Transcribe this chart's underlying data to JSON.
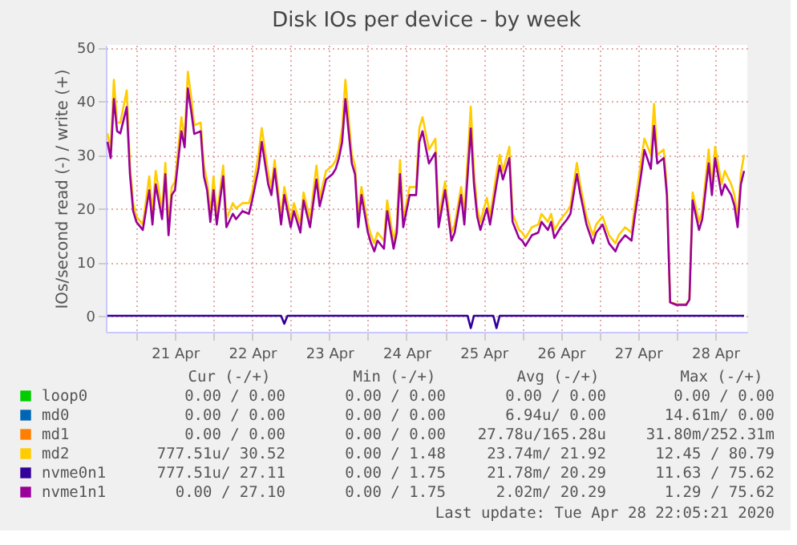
{
  "chart_data": {
    "type": "line",
    "title": "Disk IOs per device - by week",
    "ylabel": "IOs/second read (-) / write (+)",
    "x": [
      "2020-04-20T15:00",
      "2020-04-20T16:00",
      "2020-04-20T17:00",
      "2020-04-20T18:00",
      "2020-04-20T19:00",
      "2020-04-20T21:00",
      "2020-04-20T22:00",
      "2020-04-20T23:00",
      "2020-04-21T00:00",
      "2020-04-21T02:00",
      "2020-04-21T04:00",
      "2020-04-21T05:00",
      "2020-04-21T06:00",
      "2020-04-21T08:00",
      "2020-04-21T09:00",
      "2020-04-21T10:00",
      "2020-04-21T11:00",
      "2020-04-21T12:00",
      "2020-04-21T14:00",
      "2020-04-21T15:00",
      "2020-04-21T16:00",
      "2020-04-21T17:00",
      "2020-04-21T18:00",
      "2020-04-21T20:00",
      "2020-04-21T21:00",
      "2020-04-21T22:00",
      "2020-04-21T23:00",
      "2020-04-22T00:00",
      "2020-04-22T01:00",
      "2020-04-22T03:00",
      "2020-04-22T04:00",
      "2020-04-22T06:00",
      "2020-04-22T07:00",
      "2020-04-22T09:00",
      "2020-04-22T11:00",
      "2020-04-22T12:00",
      "2020-04-22T14:00",
      "2020-04-22T15:00",
      "2020-04-22T17:00",
      "2020-04-22T18:00",
      "2020-04-22T19:00",
      "2020-04-22T21:00",
      "2020-04-22T22:00",
      "2020-04-23T00:00",
      "2020-04-23T01:00",
      "2020-04-23T03:00",
      "2020-04-23T04:00",
      "2020-04-23T06:00",
      "2020-04-23T08:00",
      "2020-04-23T09:00",
      "2020-04-23T11:00",
      "2020-04-23T13:00",
      "2020-04-23T14:00",
      "2020-04-23T15:00",
      "2020-04-23T16:00",
      "2020-04-23T17:00",
      "2020-04-23T19:00",
      "2020-04-23T20:00",
      "2020-04-23T21:00",
      "2020-04-23T22:00",
      "2020-04-24T00:00",
      "2020-04-24T01:00",
      "2020-04-24T02:00",
      "2020-04-24T03:00",
      "2020-04-24T05:00",
      "2020-04-24T06:00",
      "2020-04-24T08:00",
      "2020-04-24T09:00",
      "2020-04-24T10:00",
      "2020-04-24T11:00",
      "2020-04-24T13:00",
      "2020-04-24T15:00",
      "2020-04-24T16:00",
      "2020-04-24T17:00",
      "2020-04-24T19:00",
      "2020-04-24T21:00",
      "2020-04-24T22:00",
      "2020-04-25T00:00",
      "2020-04-25T02:00",
      "2020-04-25T03:00",
      "2020-04-25T05:00",
      "2020-04-25T06:00",
      "2020-04-25T08:00",
      "2020-04-25T09:00",
      "2020-04-25T10:00",
      "2020-04-25T11:00",
      "2020-04-25T13:00",
      "2020-04-25T14:00",
      "2020-04-25T16:00",
      "2020-04-25T17:00",
      "2020-04-25T18:00",
      "2020-04-25T20:00",
      "2020-04-25T21:00",
      "2020-04-25T23:00",
      "2020-04-26T00:00",
      "2020-04-26T01:00",
      "2020-04-26T03:00",
      "2020-04-26T05:00",
      "2020-04-26T06:00",
      "2020-04-26T08:00",
      "2020-04-26T09:00",
      "2020-04-26T10:00",
      "2020-04-26T12:00",
      "2020-04-26T14:00",
      "2020-04-26T15:00",
      "2020-04-26T17:00",
      "2020-04-26T18:00",
      "2020-04-26T20:00",
      "2020-04-26T22:00",
      "2020-04-26T23:00",
      "2020-04-27T01:00",
      "2020-04-27T03:00",
      "2020-04-27T05:00",
      "2020-04-27T06:00",
      "2020-04-27T08:00",
      "2020-04-27T10:00",
      "2020-04-27T11:00",
      "2020-04-27T13:00",
      "2020-04-27T14:00",
      "2020-04-27T16:00",
      "2020-04-27T17:00",
      "2020-04-27T18:00",
      "2020-04-27T20:00",
      "2020-04-27T21:00",
      "2020-04-27T22:00",
      "2020-04-28T00:00",
      "2020-04-28T03:00",
      "2020-04-28T04:00",
      "2020-04-28T05:00",
      "2020-04-28T07:00",
      "2020-04-28T08:00",
      "2020-04-28T10:00",
      "2020-04-28T11:00",
      "2020-04-28T12:00",
      "2020-04-28T14:00",
      "2020-04-28T15:00",
      "2020-04-28T17:00",
      "2020-04-28T18:00",
      "2020-04-28T19:00",
      "2020-04-28T20:00",
      "2020-04-28T21:00"
    ],
    "series": [
      {
        "name": "loop0",
        "color": "#00cc00",
        "values": [
          null,
          null,
          null,
          null,
          null,
          null,
          null,
          null,
          null,
          null,
          null,
          null,
          null,
          null,
          null,
          null,
          null,
          null,
          null,
          null,
          null,
          null,
          null,
          null,
          null,
          null,
          null,
          null,
          null,
          null,
          null,
          null,
          null,
          null,
          null,
          null,
          null,
          null,
          null,
          null,
          null,
          null,
          null,
          null,
          null,
          null,
          null,
          null,
          null,
          null,
          null,
          null,
          null,
          null,
          null,
          null,
          null,
          null,
          null,
          null,
          null,
          null,
          null,
          null,
          null,
          null,
          null,
          null,
          null,
          null,
          null,
          null,
          null,
          null,
          null,
          null,
          null,
          null,
          null,
          null,
          null,
          null,
          null,
          null,
          null,
          null,
          null,
          null,
          null,
          null,
          null,
          null,
          null,
          null,
          null,
          null,
          null,
          null,
          null,
          null,
          null,
          null,
          null,
          null,
          null,
          null,
          null,
          null,
          null,
          null,
          null,
          null,
          null,
          null,
          null,
          null,
          null,
          null,
          null,
          null,
          null,
          null,
          null,
          null,
          null,
          null,
          null,
          null,
          null,
          null,
          null,
          null,
          null,
          null,
          null,
          null,
          null,
          null,
          null,
          null,
          null
        ]
      },
      {
        "name": "md0",
        "color": "#0066b3",
        "values": [
          null,
          null,
          null,
          null,
          null,
          null,
          null,
          null,
          null,
          null,
          null,
          null,
          null,
          null,
          null,
          null,
          null,
          null,
          null,
          null,
          null,
          null,
          null,
          null,
          null,
          null,
          null,
          null,
          null,
          null,
          null,
          null,
          null,
          null,
          null,
          null,
          null,
          null,
          null,
          null,
          null,
          null,
          null,
          null,
          null,
          null,
          null,
          null,
          null,
          null,
          null,
          null,
          null,
          null,
          null,
          null,
          null,
          null,
          null,
          null,
          null,
          null,
          null,
          null,
          null,
          null,
          null,
          null,
          null,
          null,
          null,
          null,
          null,
          null,
          null,
          null,
          null,
          null,
          null,
          null,
          null,
          null,
          null,
          null,
          null,
          null,
          null,
          null,
          null,
          null,
          null,
          null,
          null,
          null,
          null,
          null,
          null,
          null,
          null,
          null,
          null,
          null,
          null,
          null,
          null,
          null,
          null,
          null,
          null,
          null,
          null,
          null,
          null,
          null,
          null,
          null,
          null,
          null,
          null,
          null,
          null,
          null,
          null,
          null,
          null,
          null,
          null,
          null,
          null,
          null,
          null,
          null,
          null,
          null,
          null,
          null,
          null,
          null,
          null,
          null,
          null
        ]
      },
      {
        "name": "md1",
        "color": "#ff8000",
        "values": [
          null,
          null,
          null,
          null,
          null,
          null,
          null,
          null,
          null,
          null,
          null,
          null,
          null,
          null,
          null,
          null,
          null,
          null,
          null,
          null,
          null,
          null,
          null,
          null,
          null,
          null,
          null,
          null,
          null,
          null,
          null,
          null,
          null,
          null,
          null,
          null,
          null,
          null,
          null,
          null,
          null,
          null,
          null,
          null,
          null,
          null,
          null,
          null,
          null,
          null,
          null,
          null,
          null,
          null,
          null,
          null,
          null,
          null,
          null,
          null,
          null,
          null,
          null,
          null,
          null,
          null,
          null,
          null,
          null,
          null,
          null,
          null,
          null,
          null,
          null,
          null,
          null,
          null,
          null,
          null,
          null,
          null,
          null,
          null,
          null,
          null,
          null,
          null,
          null,
          null,
          null,
          null,
          null,
          null,
          null,
          null,
          null,
          null,
          null,
          null,
          null,
          null,
          null,
          null,
          null,
          null,
          null,
          null,
          null,
          null,
          null,
          null,
          null,
          null,
          null,
          null,
          null,
          null,
          null,
          null,
          null,
          null,
          null,
          null,
          null,
          null,
          null,
          null,
          null,
          null,
          null,
          null,
          null,
          null,
          null,
          null,
          null,
          null,
          null,
          null,
          null
        ]
      },
      {
        "name": "md2",
        "color": "#ffcc00",
        "values": [
          34,
          31,
          44,
          36,
          36,
          42,
          28,
          21,
          18.5,
          17,
          26,
          19,
          27,
          19.5,
          28.5,
          17,
          24,
          25,
          37,
          33,
          45.5,
          41,
          35.5,
          36,
          28,
          25,
          19,
          26,
          18.5,
          28,
          18,
          21,
          20,
          21,
          21,
          23,
          30,
          35,
          26.5,
          24,
          29,
          18.5,
          24,
          18,
          21,
          17,
          23,
          18,
          28,
          22,
          27,
          28,
          29,
          31,
          35,
          44,
          30,
          28,
          18.5,
          24,
          17,
          15,
          13.5,
          15.5,
          14,
          21.5,
          14,
          17,
          29,
          18,
          24,
          24,
          35,
          37,
          31,
          33,
          18,
          25,
          15.5,
          17,
          24,
          19,
          39,
          27,
          20,
          17.5,
          22,
          18.5,
          26.5,
          30,
          27,
          31.5,
          19,
          16,
          15.5,
          14.5,
          16.5,
          17,
          19,
          17.5,
          19,
          16,
          18,
          19.5,
          20.5,
          28.5,
          24.5,
          18.5,
          15,
          17,
          18.5,
          15,
          13.5,
          15,
          16.5,
          15.5,
          20.5,
          29,
          33,
          30,
          39.5,
          30,
          31,
          24,
          2.5,
          2.2,
          2.2,
          3,
          23,
          17.5,
          19.5,
          31,
          24,
          31.5,
          24.5,
          27,
          24.5,
          22.5,
          18,
          26.5,
          30
        ]
      },
      {
        "name": "nvme0n1",
        "color": "#330099",
        "x": [
          "2020-04-20T15:00",
          "2020-04-22T21:00",
          "2020-04-22T22:00",
          "2020-04-22T23:00",
          "2020-04-25T07:00",
          "2020-04-25T08:00",
          "2020-04-25T09:00",
          "2020-04-25T15:00",
          "2020-04-25T16:00",
          "2020-04-25T17:00",
          "2020-04-28T21:00"
        ],
        "values": [
          0,
          0,
          -1.5,
          0,
          0,
          -2.3,
          0,
          0,
          -2.3,
          0,
          0
        ]
      },
      {
        "name": "nvme1n1",
        "color": "#990099",
        "values": [
          32.4,
          29.4,
          40.4,
          34.4,
          34,
          38.9,
          26.4,
          19.5,
          17.5,
          16,
          23.4,
          17,
          24.5,
          18,
          26.4,
          15,
          22.5,
          23.4,
          34.4,
          31.4,
          42.4,
          38.4,
          33.9,
          34.4,
          26,
          23.4,
          17.5,
          23.4,
          17,
          26,
          16.5,
          19,
          18,
          19.5,
          19,
          21.5,
          27.4,
          32.4,
          24.5,
          22.5,
          27.4,
          17,
          22.5,
          16.5,
          19.5,
          15.5,
          21.5,
          16.5,
          25.4,
          20.4,
          25.4,
          26.4,
          27.4,
          29.4,
          32.4,
          40.4,
          28.4,
          26.4,
          16.5,
          22.5,
          15.5,
          13.5,
          12,
          14,
          12.5,
          19.5,
          12.5,
          15.5,
          26.4,
          16.5,
          22.5,
          22.5,
          32.4,
          34.4,
          28.4,
          30.4,
          16.5,
          23.4,
          14,
          15.5,
          22.5,
          17,
          34.9,
          24.5,
          18.5,
          16,
          20,
          17,
          24.5,
          28,
          25.4,
          29.4,
          17.5,
          14.5,
          14,
          13,
          15,
          15.5,
          17.5,
          16,
          17.5,
          14.5,
          16.5,
          18,
          19,
          26.4,
          22.9,
          17,
          13.5,
          15.5,
          17,
          13.5,
          12,
          13.5,
          15,
          14,
          18.5,
          26.4,
          30.9,
          27.4,
          35.4,
          28.4,
          29.4,
          22.5,
          2.5,
          2,
          2,
          3,
          21.5,
          16,
          18,
          28.4,
          22.5,
          29.4,
          22.5,
          24.5,
          22.5,
          20.5,
          16.5,
          24.5,
          27
        ]
      }
    ],
    "xlim": [
      "2020-04-20T14:30",
      "2020-04-28T22:00"
    ],
    "xticks": [
      {
        "value": "2020-04-21T00:00",
        "label": null
      },
      {
        "value": "2020-04-21T12:00",
        "label": "21 Apr"
      },
      {
        "value": "2020-04-22T00:00",
        "label": null
      },
      {
        "value": "2020-04-22T12:00",
        "label": "22 Apr"
      },
      {
        "value": "2020-04-23T00:00",
        "label": null
      },
      {
        "value": "2020-04-23T12:00",
        "label": "23 Apr"
      },
      {
        "value": "2020-04-24T00:00",
        "label": null
      },
      {
        "value": "2020-04-24T12:00",
        "label": "24 Apr"
      },
      {
        "value": "2020-04-25T00:00",
        "label": null
      },
      {
        "value": "2020-04-25T12:00",
        "label": "25 Apr"
      },
      {
        "value": "2020-04-26T00:00",
        "label": null
      },
      {
        "value": "2020-04-26T12:00",
        "label": "26 Apr"
      },
      {
        "value": "2020-04-27T00:00",
        "label": null
      },
      {
        "value": "2020-04-27T12:00",
        "label": "27 Apr"
      },
      {
        "value": "2020-04-28T00:00",
        "label": null
      },
      {
        "value": "2020-04-28T12:00",
        "label": "28 Apr"
      }
    ],
    "ylim": [
      -3,
      50.5
    ],
    "yticks": [
      0,
      10,
      20,
      30,
      40,
      50
    ],
    "grid": true,
    "legend": "bottom",
    "annotations": [
      "Cur (-/+)",
      "Min (-/+)",
      "Avg (-/+)",
      "Max (-/+)",
      "0.00 /  0.00",
      "0.00 /  0.00",
      "0.00 /  0.00",
      "0.00 /  0.00",
      "0.00 /  0.00",
      "0.00 /  0.00",
      "6.94u/  0.00",
      "14.61m/  0.00",
      "0.00 /  0.00",
      "0.00 /  0.00",
      "27.78u/165.28u",
      "31.80m/252.31m",
      "777.51u/ 30.52",
      "0.00 /  1.48",
      "23.74m/ 21.92",
      "12.45 / 80.79",
      "777.51u/ 27.11",
      "0.00 /  1.75",
      "21.78m/ 20.29",
      "11.63 / 75.62",
      "0.00 / 27.10",
      "0.00 /  1.75",
      "2.02m/ 20.29",
      "1.29 / 75.62",
      "Last update: Tue Apr 28 22:05:21 2020"
    ]
  }
}
